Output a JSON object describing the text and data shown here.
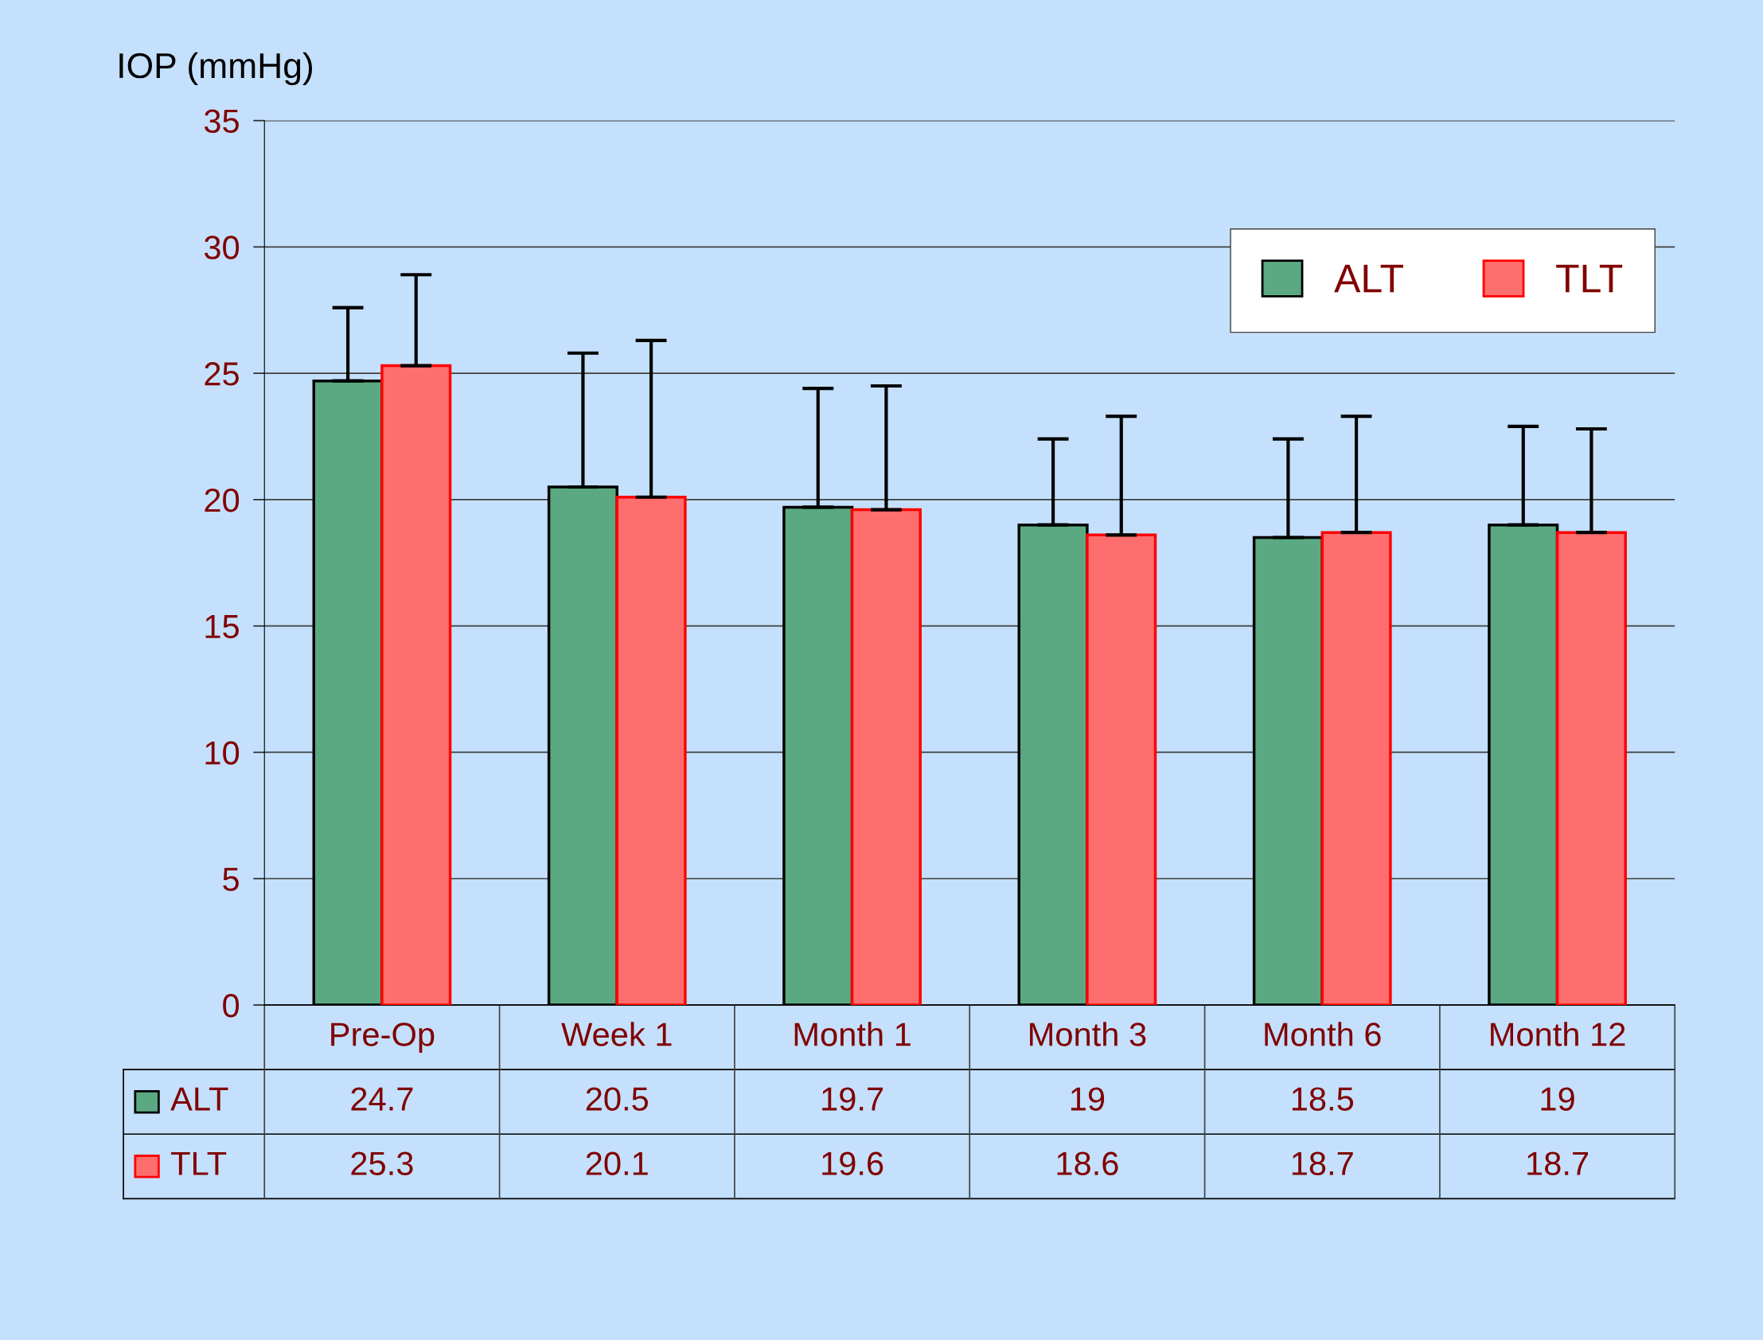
{
  "chart_data": {
    "type": "bar",
    "ylabel": "IOP (mmHg)",
    "categories": [
      "Pre-Op",
      "Week 1",
      "Month 1",
      "Month 3",
      "Month 6",
      "Month 12"
    ],
    "series": [
      {
        "name": "ALT",
        "color": "#5aa982",
        "values": [
          24.7,
          20.5,
          19.7,
          19,
          18.5,
          19
        ],
        "errors": [
          [
            24.7,
            27.6
          ],
          [
            20.5,
            25.8
          ],
          [
            19.7,
            24.4
          ],
          [
            19,
            22.4
          ],
          [
            18.5,
            22.4
          ],
          [
            19,
            22.9
          ]
        ]
      },
      {
        "name": "TLT",
        "color": "#ff6e6e",
        "values": [
          25.3,
          20.1,
          19.6,
          18.6,
          18.7,
          18.7
        ],
        "errors": [
          [
            25.3,
            28.9
          ],
          [
            20.1,
            26.3
          ],
          [
            19.6,
            24.5
          ],
          [
            18.6,
            23.3
          ],
          [
            18.7,
            23.3
          ],
          [
            18.7,
            22.8
          ]
        ]
      }
    ],
    "ylim": [
      0,
      35
    ],
    "yticks": [
      0,
      5,
      10,
      15,
      20,
      25,
      30,
      35
    ],
    "grid": "y",
    "legend": "top right",
    "data_labels": true
  }
}
